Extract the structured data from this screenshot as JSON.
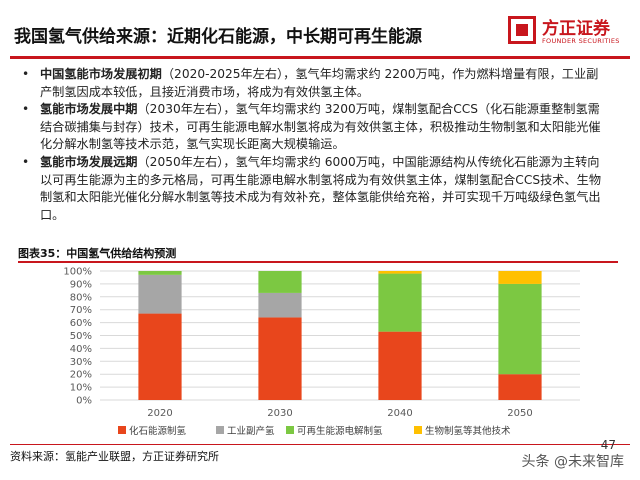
{
  "header": {
    "title": "我国氢气供给来源：近期化石能源，中长期可再生能源",
    "logo_cn": "方正证券",
    "logo_en": "FOUNDER SECURITIES"
  },
  "bullets": [
    {
      "marker": "•",
      "lead": "中国氢能市场发展初期",
      "text": "（2020-2025年左右），氢气年均需求约 2200万吨，作为燃料增量有限，工业副产制氢因成本较低，且接近消费市场，将成为有效供氢主体。"
    },
    {
      "marker": "•",
      "lead": "氢能市场发展中期",
      "text": "（2030年左右），氢气年均需求约 3200万吨，煤制氢配合CCS（化石能源重整制氢需结合碳捕集与封存）技术，可再生能源电解水制氢将成为有效供氢主体，积极推动生物制氢和太阳能光催化分解水制氢等技术示范，氢气实现长距离大规模输运。"
    },
    {
      "marker": "•",
      "lead": "氢能市场发展远期",
      "text": "（2050年左右），氢气年均需求约 6000万吨，中国能源结构从传统化石能源为主转向以可再生能源为主的多元格局，可再生能源电解水制氢将成为有效供氢主体，煤制氢配合CCS技术、生物制氢和太阳能光催化分解水制氢等技术成为有效补充，整体氢能供给充裕，并可实现千万吨级绿色氢气出口。"
    }
  ],
  "figure": {
    "caption": "图表35：中国氢气供给结构预测"
  },
  "colors": {
    "brand": "#c8161d",
    "fossil": "#e8461c",
    "industrial": "#a6a6a6",
    "renewable": "#7cc842",
    "biomass": "#ffc000"
  },
  "chart_data": {
    "type": "bar",
    "stacked": true,
    "categories": [
      "2020",
      "2030",
      "2040",
      "2050"
    ],
    "series": [
      {
        "name": "化石能源制氢",
        "values": [
          67,
          64,
          53,
          20
        ],
        "color": "#e8461c"
      },
      {
        "name": "工业副产氢",
        "values": [
          30,
          19,
          0,
          0
        ],
        "color": "#a6a6a6"
      },
      {
        "name": "可再生能源电解制氢",
        "values": [
          3,
          17,
          45,
          70
        ],
        "color": "#7cc842"
      },
      {
        "name": "生物制氢等其他技术",
        "values": [
          0,
          0,
          2,
          10
        ],
        "color": "#ffc000"
      }
    ],
    "yticks": [
      "0%",
      "10%",
      "20%",
      "30%",
      "40%",
      "50%",
      "60%",
      "70%",
      "80%",
      "90%",
      "100%"
    ],
    "ylim": [
      0,
      100
    ],
    "grid": true,
    "legend_position": "bottom"
  },
  "footer": {
    "source": "资料来源：氢能产业联盟，方正证券研究所",
    "page": "47",
    "watermark": "头条 @未来智库"
  }
}
